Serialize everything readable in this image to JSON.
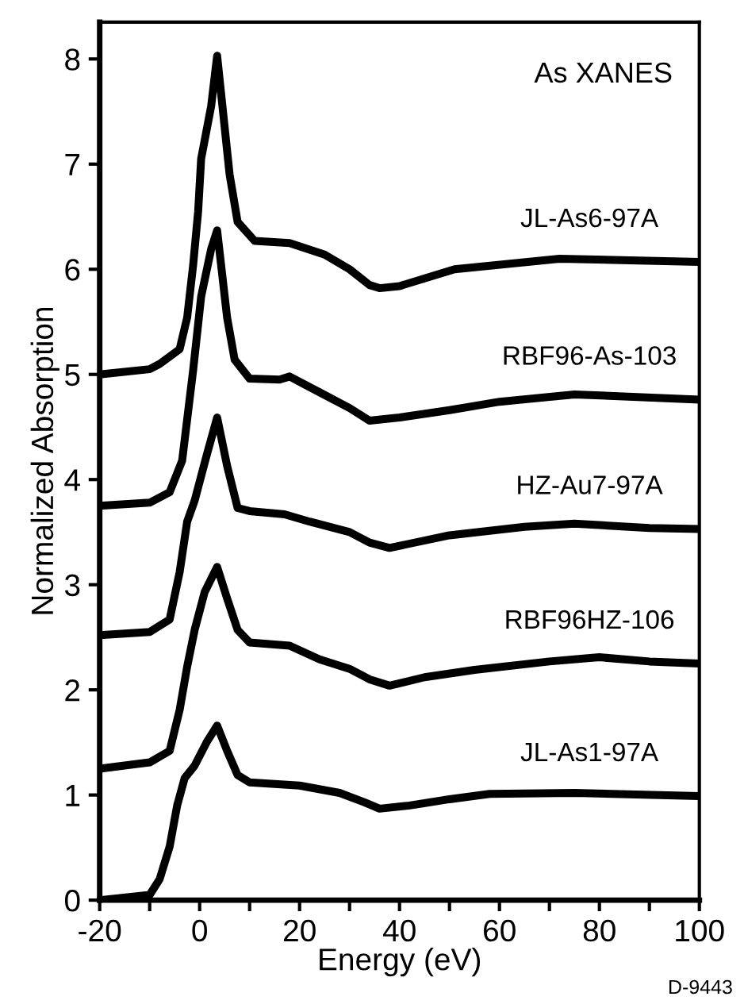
{
  "chart_data": {
    "type": "line",
    "xlabel": "Energy (eV)",
    "ylabel": "Normalized Absorption",
    "annotations": [
      "As XANES",
      "D-9443"
    ],
    "xlim": [
      -20,
      100
    ],
    "ylim": [
      0,
      8.35
    ],
    "xticks": [
      -20,
      {
        "value": -10,
        "label": null
      },
      0,
      {
        "value": 10,
        "label": null
      },
      20,
      {
        "value": 30,
        "label": null
      },
      40,
      {
        "value": 50,
        "label": null
      },
      60,
      {
        "value": 70,
        "label": null
      },
      80,
      {
        "value": 90,
        "label": null
      },
      100
    ],
    "yticks": [
      0,
      1,
      2,
      3,
      4,
      5,
      6,
      7,
      8
    ],
    "grid": false,
    "legend": false,
    "marker": "none",
    "line_style": "solid",
    "series": [
      {
        "name": "JL-As6-97A",
        "color": "#000000",
        "x": [
          -20,
          -10,
          -8,
          -4,
          -2.5,
          -1.3,
          -0.3,
          0.3,
          2.3,
          3.5,
          6,
          7.6,
          11,
          18,
          25,
          30,
          34,
          36,
          40,
          51,
          72,
          100
        ],
        "values": [
          5.0,
          5.05,
          5.1,
          5.24,
          5.54,
          6.04,
          6.55,
          7.05,
          7.55,
          8.03,
          6.9,
          6.45,
          6.27,
          6.25,
          6.14,
          6.0,
          5.85,
          5.82,
          5.84,
          6.0,
          6.1,
          6.07
        ]
      },
      {
        "name": "RBF96-As-103",
        "color": "#000000",
        "x": [
          -20,
          -10,
          -6,
          -3.5,
          -1.3,
          0.3,
          2.3,
          3.5,
          5.5,
          7,
          10,
          16,
          18,
          24,
          30,
          34,
          40,
          50,
          60,
          75,
          100
        ],
        "values": [
          3.75,
          3.78,
          3.88,
          4.18,
          5.04,
          5.74,
          6.19,
          6.37,
          5.54,
          5.14,
          4.96,
          4.95,
          4.98,
          4.83,
          4.68,
          4.56,
          4.59,
          4.66,
          4.74,
          4.81,
          4.76
        ]
      },
      {
        "name": "HZ-Au7-97A",
        "color": "#000000",
        "x": [
          -20,
          -10,
          -6,
          -4,
          -2.5,
          -1,
          1.4,
          3.5,
          5.5,
          7.6,
          10,
          17,
          22,
          30,
          34,
          38,
          50,
          65,
          75,
          90,
          100
        ],
        "values": [
          2.52,
          2.55,
          2.67,
          3.12,
          3.6,
          3.8,
          4.23,
          4.59,
          4.13,
          3.73,
          3.7,
          3.67,
          3.6,
          3.5,
          3.4,
          3.35,
          3.47,
          3.55,
          3.58,
          3.54,
          3.53
        ]
      },
      {
        "name": "RBF96HZ-106",
        "color": "#000000",
        "x": [
          -20,
          -10,
          -6,
          -4,
          -2.5,
          -1,
          1,
          3.5,
          5.5,
          7.6,
          10,
          18,
          24,
          30,
          34,
          38,
          45,
          55,
          70,
          80,
          90,
          100
        ],
        "values": [
          1.25,
          1.31,
          1.42,
          1.81,
          2.22,
          2.57,
          2.93,
          3.17,
          2.87,
          2.57,
          2.45,
          2.42,
          2.29,
          2.2,
          2.1,
          2.04,
          2.12,
          2.19,
          2.27,
          2.31,
          2.27,
          2.25
        ]
      },
      {
        "name": "JL-As1-97A",
        "color": "#000000",
        "x": [
          -20,
          -10,
          -8,
          -6,
          -4.5,
          -3,
          -1,
          1.5,
          3.5,
          5.5,
          7.6,
          10,
          20,
          28,
          33,
          36,
          42,
          50,
          58,
          75,
          100
        ],
        "values": [
          0.0,
          0.05,
          0.2,
          0.51,
          0.9,
          1.16,
          1.28,
          1.51,
          1.66,
          1.42,
          1.19,
          1.12,
          1.09,
          1.02,
          0.93,
          0.87,
          0.9,
          0.96,
          1.01,
          1.02,
          0.99
        ]
      }
    ]
  }
}
